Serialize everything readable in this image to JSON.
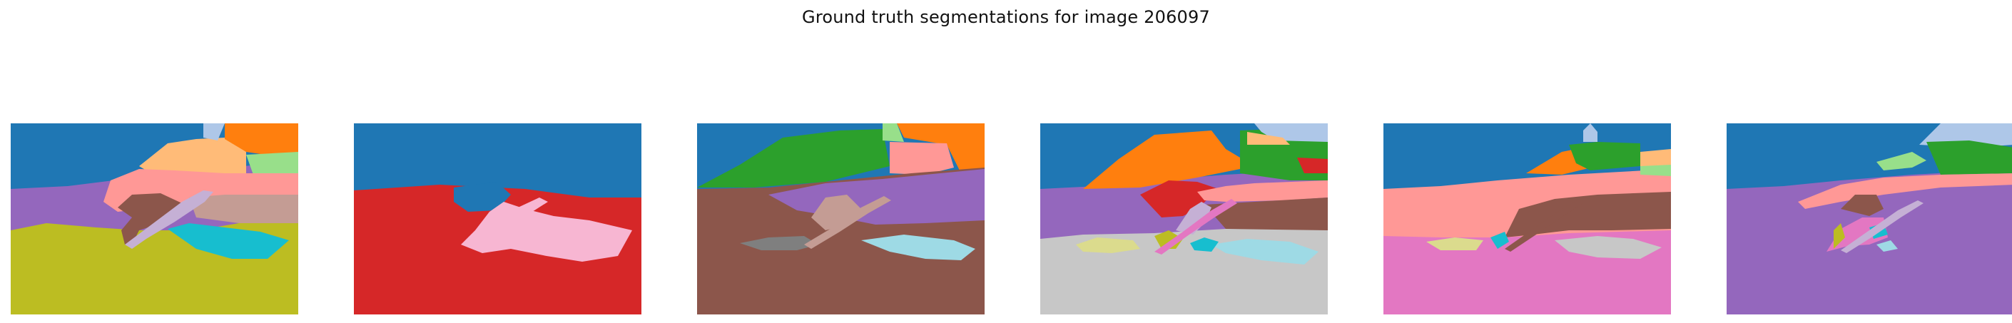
{
  "figure": {
    "title": "Ground truth segmentations for image 206097"
  },
  "panels": [
    {
      "name": "segmentation-1",
      "segment_count": 12
    },
    {
      "name": "segmentation-2",
      "segment_count": 3
    },
    {
      "name": "segmentation-3",
      "segment_count": 12
    },
    {
      "name": "segmentation-4",
      "segment_count": 17
    },
    {
      "name": "segmentation-5",
      "segment_count": 12
    },
    {
      "name": "segmentation-6",
      "segment_count": 11
    }
  ],
  "palette": {
    "blue": "#1f77b4",
    "light_blue": "#aec7e8",
    "orange": "#ff7f0e",
    "light_orange": "#ffbb78",
    "green": "#2ca02c",
    "light_green": "#98df8a",
    "red": "#d62728",
    "salmon": "#ff9896",
    "purple": "#9467bd",
    "lavender": "#c5b0d5",
    "brown": "#8c564b",
    "tan": "#c49c94",
    "pink": "#e377c2",
    "light_pink": "#f7b6d2",
    "gray": "#7f7f7f",
    "light_gray": "#c7c7c7",
    "olive": "#bcbd22",
    "khaki": "#dbdb8d",
    "cyan": "#17becf",
    "light_cyan": "#9edae5"
  }
}
